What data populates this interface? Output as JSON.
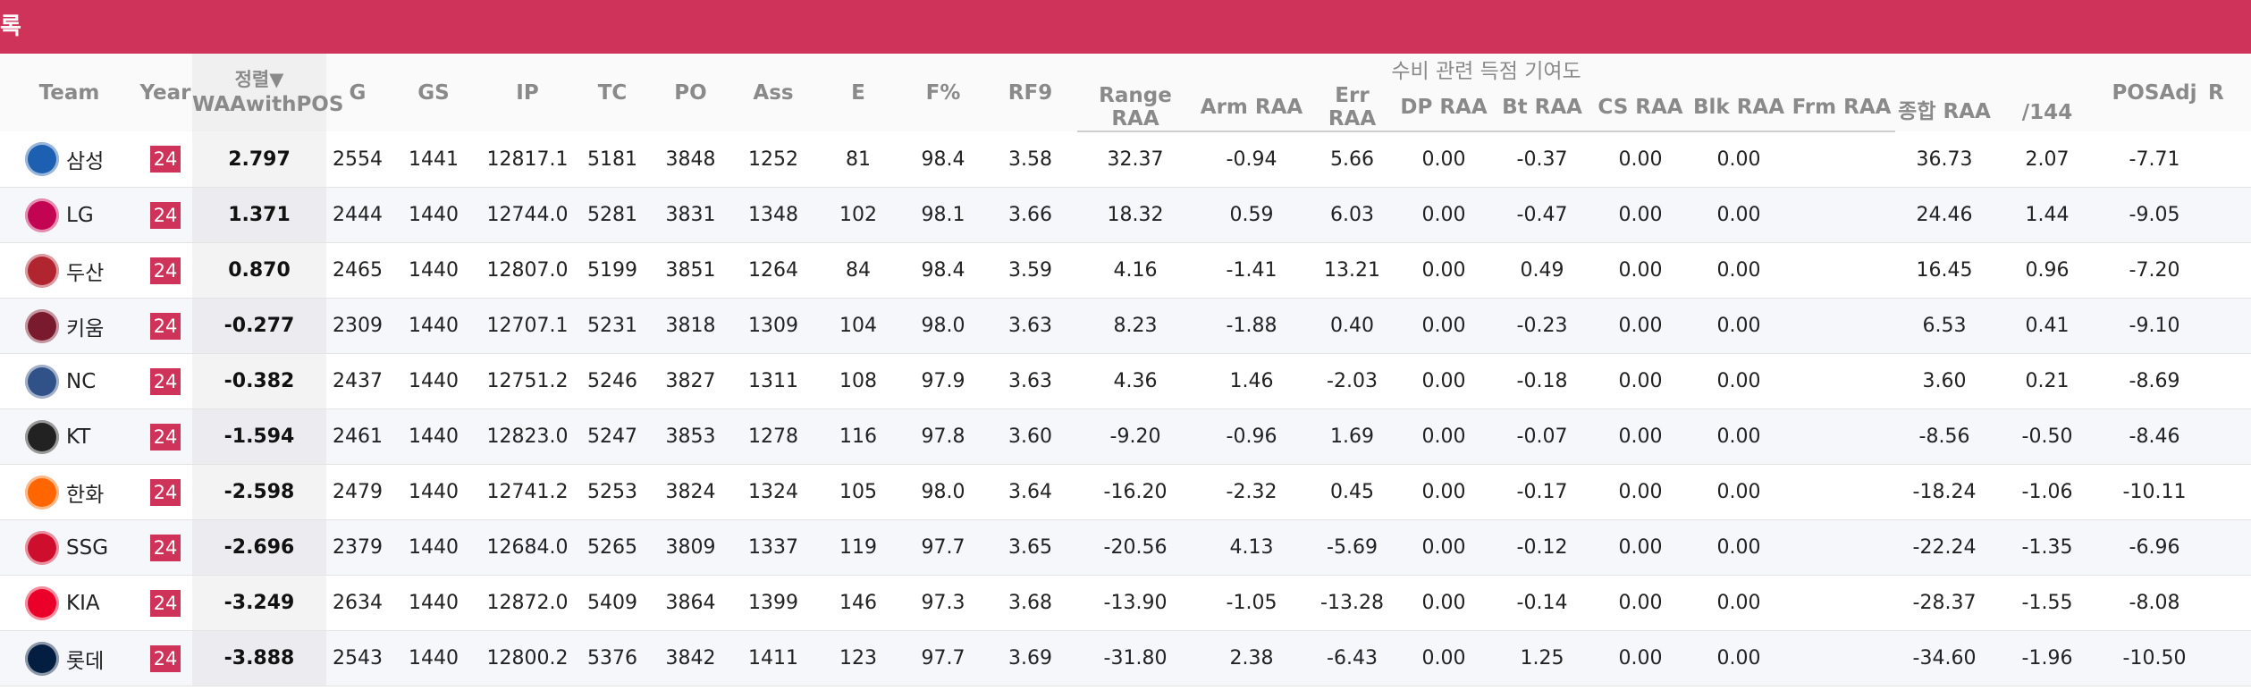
{
  "page": {
    "banner_title": "록"
  },
  "table": {
    "group_header": "수비 관련 득점 기여도",
    "sort_label": "정렬▼",
    "headers": {
      "team": "Team",
      "year": "Year",
      "waa": "WAAwithPOS",
      "g": "G",
      "gs": "GS",
      "ip": "IP",
      "tc": "TC",
      "po": "PO",
      "ass": "Ass",
      "e": "E",
      "fpct": "F%",
      "rf9": "RF9",
      "range": "Range RAA",
      "arm": "Arm RAA",
      "err": "Err RAA",
      "dp": "DP RAA",
      "bt": "Bt RAA",
      "cs": "CS RAA",
      "blk": "Blk RAA",
      "frm": "Frm RAA",
      "total": "종합 RAA",
      "per144": "/144",
      "posadj": "POSAdj",
      "cut": "R"
    },
    "rows": [
      {
        "team": "삼성",
        "logo_color": "#1d5fb0",
        "year": "24",
        "waa": "2.797",
        "g": "2554",
        "gs": "1441",
        "ip": "12817.1",
        "tc": "5181",
        "po": "3848",
        "ass": "1252",
        "e": "81",
        "fpct": "98.4",
        "rf9": "3.58",
        "range": "32.37",
        "arm": "-0.94",
        "err": "5.66",
        "dp": "0.00",
        "bt": "-0.37",
        "cs": "0.00",
        "blk": "0.00",
        "frm": "",
        "total": "36.73",
        "per144": "2.07",
        "posadj": "-7.71"
      },
      {
        "team": "LG",
        "logo_color": "#c30452",
        "year": "24",
        "waa": "1.371",
        "g": "2444",
        "gs": "1440",
        "ip": "12744.0",
        "tc": "5281",
        "po": "3831",
        "ass": "1348",
        "e": "102",
        "fpct": "98.1",
        "rf9": "3.66",
        "range": "18.32",
        "arm": "0.59",
        "err": "6.03",
        "dp": "0.00",
        "bt": "-0.47",
        "cs": "0.00",
        "blk": "0.00",
        "frm": "",
        "total": "24.46",
        "per144": "1.44",
        "posadj": "-9.05"
      },
      {
        "team": "두산",
        "logo_color": "#b0252f",
        "year": "24",
        "waa": "0.870",
        "g": "2465",
        "gs": "1440",
        "ip": "12807.0",
        "tc": "5199",
        "po": "3851",
        "ass": "1264",
        "e": "84",
        "fpct": "98.4",
        "rf9": "3.59",
        "range": "4.16",
        "arm": "-1.41",
        "err": "13.21",
        "dp": "0.00",
        "bt": "0.49",
        "cs": "0.00",
        "blk": "0.00",
        "frm": "",
        "total": "16.45",
        "per144": "0.96",
        "posadj": "-7.20"
      },
      {
        "team": "키움",
        "logo_color": "#7a1a2e",
        "year": "24",
        "waa": "-0.277",
        "g": "2309",
        "gs": "1440",
        "ip": "12707.1",
        "tc": "5231",
        "po": "3818",
        "ass": "1309",
        "e": "104",
        "fpct": "98.0",
        "rf9": "3.63",
        "range": "8.23",
        "arm": "-1.88",
        "err": "0.40",
        "dp": "0.00",
        "bt": "-0.23",
        "cs": "0.00",
        "blk": "0.00",
        "frm": "",
        "total": "6.53",
        "per144": "0.41",
        "posadj": "-9.10"
      },
      {
        "team": "NC",
        "logo_color": "#315288",
        "year": "24",
        "waa": "-0.382",
        "g": "2437",
        "gs": "1440",
        "ip": "12751.2",
        "tc": "5246",
        "po": "3827",
        "ass": "1311",
        "e": "108",
        "fpct": "97.9",
        "rf9": "3.63",
        "range": "4.36",
        "arm": "1.46",
        "err": "-2.03",
        "dp": "0.00",
        "bt": "-0.18",
        "cs": "0.00",
        "blk": "0.00",
        "frm": "",
        "total": "3.60",
        "per144": "0.21",
        "posadj": "-8.69"
      },
      {
        "team": "KT",
        "logo_color": "#222222",
        "year": "24",
        "waa": "-1.594",
        "g": "2461",
        "gs": "1440",
        "ip": "12823.0",
        "tc": "5247",
        "po": "3853",
        "ass": "1278",
        "e": "116",
        "fpct": "97.8",
        "rf9": "3.60",
        "range": "-9.20",
        "arm": "-0.96",
        "err": "1.69",
        "dp": "0.00",
        "bt": "-0.07",
        "cs": "0.00",
        "blk": "0.00",
        "frm": "",
        "total": "-8.56",
        "per144": "-0.50",
        "posadj": "-8.46"
      },
      {
        "team": "한화",
        "logo_color": "#ff6600",
        "year": "24",
        "waa": "-2.598",
        "g": "2479",
        "gs": "1440",
        "ip": "12741.2",
        "tc": "5253",
        "po": "3824",
        "ass": "1324",
        "e": "105",
        "fpct": "98.0",
        "rf9": "3.64",
        "range": "-16.20",
        "arm": "-2.32",
        "err": "0.45",
        "dp": "0.00",
        "bt": "-0.17",
        "cs": "0.00",
        "blk": "0.00",
        "frm": "",
        "total": "-18.24",
        "per144": "-1.06",
        "posadj": "-10.11"
      },
      {
        "team": "SSG",
        "logo_color": "#ce0e2d",
        "year": "24",
        "waa": "-2.696",
        "g": "2379",
        "gs": "1440",
        "ip": "12684.0",
        "tc": "5265",
        "po": "3809",
        "ass": "1337",
        "e": "119",
        "fpct": "97.7",
        "rf9": "3.65",
        "range": "-20.56",
        "arm": "4.13",
        "err": "-5.69",
        "dp": "0.00",
        "bt": "-0.12",
        "cs": "0.00",
        "blk": "0.00",
        "frm": "",
        "total": "-22.24",
        "per144": "-1.35",
        "posadj": "-6.96"
      },
      {
        "team": "KIA",
        "logo_color": "#ea0029",
        "year": "24",
        "waa": "-3.249",
        "g": "2634",
        "gs": "1440",
        "ip": "12872.0",
        "tc": "5409",
        "po": "3864",
        "ass": "1399",
        "e": "146",
        "fpct": "97.3",
        "rf9": "3.68",
        "range": "-13.90",
        "arm": "-1.05",
        "err": "-13.28",
        "dp": "0.00",
        "bt": "-0.14",
        "cs": "0.00",
        "blk": "0.00",
        "frm": "",
        "total": "-28.37",
        "per144": "-1.55",
        "posadj": "-8.08"
      },
      {
        "team": "롯데",
        "logo_color": "#041e42",
        "year": "24",
        "waa": "-3.888",
        "g": "2543",
        "gs": "1440",
        "ip": "12800.2",
        "tc": "5376",
        "po": "3842",
        "ass": "1411",
        "e": "123",
        "fpct": "97.7",
        "rf9": "3.69",
        "range": "-31.80",
        "arm": "2.38",
        "err": "-6.43",
        "dp": "0.00",
        "bt": "1.25",
        "cs": "0.00",
        "blk": "0.00",
        "frm": "",
        "total": "-34.60",
        "per144": "-1.96",
        "posadj": "-10.50"
      }
    ]
  }
}
